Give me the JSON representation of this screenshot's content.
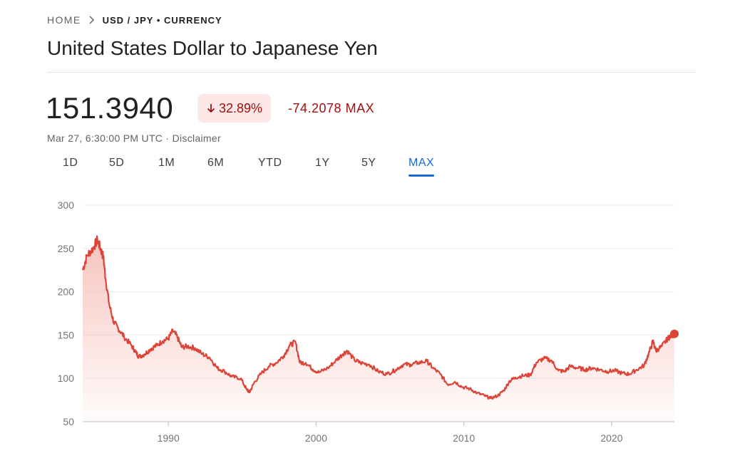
{
  "breadcrumb": {
    "home": "HOME",
    "pair": "USD / JPY • CURRENCY"
  },
  "title": "United States Dollar to Japanese Yen",
  "quote": {
    "price": "151.3940",
    "percent_change": "32.89%",
    "direction": "down",
    "abs_change": "-74.2078",
    "range_label": "MAX",
    "timestamp": "Mar 27, 6:30:00 PM UTC",
    "separator": "·",
    "disclaimer": "Disclaimer"
  },
  "ranges": [
    "1D",
    "5D",
    "1M",
    "6M",
    "YTD",
    "1Y",
    "5Y",
    "MAX"
  ],
  "active_range": "MAX",
  "colors": {
    "line": "#db4437",
    "fill_top": "#f6b9b2",
    "negative_text": "#a50e0e",
    "negative_bg": "#fce8e6",
    "accent": "#1967d2"
  },
  "chart_data": {
    "type": "area",
    "title": "",
    "xlabel": "",
    "ylabel": "",
    "xlim": [
      1984.2,
      2024.25
    ],
    "ylim": [
      50,
      300
    ],
    "yticks": [
      50,
      100,
      150,
      200,
      250,
      300
    ],
    "xticks": [
      1990,
      2000,
      2010,
      2020
    ],
    "grid": true,
    "series": [
      {
        "x": [
          1984.2,
          1984.5,
          1984.9,
          1985.2,
          1985.4,
          1985.6,
          1985.75,
          1986.0,
          1986.3,
          1986.6,
          1987.0,
          1987.5,
          1987.8,
          1988.0,
          1988.4,
          1988.8,
          1989.2,
          1989.6,
          1990.0,
          1990.3,
          1990.6,
          1990.9,
          1991.3,
          1991.8,
          1992.3,
          1992.8,
          1993.3,
          1993.8,
          1994.3,
          1994.9,
          1995.3,
          1995.5,
          1995.8,
          1996.3,
          1996.8,
          1997.3,
          1997.8,
          1998.2,
          1998.6,
          1998.9,
          1999.3,
          1999.8,
          2000.2,
          2000.8,
          2001.3,
          2001.8,
          2002.1,
          2002.6,
          2003.0,
          2003.6,
          2004.2,
          2004.8,
          2005.4,
          2005.9,
          2006.4,
          2006.9,
          2007.5,
          2007.9,
          2008.4,
          2008.9,
          2009.4,
          2009.9,
          2010.4,
          2010.9,
          2011.4,
          2011.8,
          2012.3,
          2012.7,
          2013.1,
          2013.5,
          2014.0,
          2014.5,
          2014.9,
          2015.4,
          2015.9,
          2016.4,
          2016.8,
          2017.2,
          2017.7,
          2018.2,
          2018.7,
          2019.2,
          2019.7,
          2020.2,
          2020.7,
          2021.2,
          2021.7,
          2022.2,
          2022.5,
          2022.8,
          2023.0,
          2023.4,
          2023.8,
          2024.0,
          2024.25
        ],
        "values": [
          225,
          242,
          250,
          260,
          250,
          240,
          215,
          185,
          165,
          158,
          148,
          138,
          130,
          125,
          128,
          134,
          138,
          143,
          146,
          155,
          148,
          136,
          137,
          135,
          128,
          124,
          112,
          108,
          102,
          100,
          87,
          84,
          95,
          106,
          114,
          118,
          126,
          138,
          142,
          118,
          118,
          110,
          107,
          112,
          120,
          128,
          132,
          121,
          118,
          116,
          108,
          105,
          110,
          116,
          116,
          118,
          120,
          112,
          105,
          93,
          96,
          90,
          88,
          83,
          80,
          77,
          80,
          86,
          97,
          101,
          103,
          104,
          118,
          123,
          121,
          109,
          108,
          114,
          112,
          110,
          112,
          110,
          108,
          109,
          106,
          105,
          110,
          115,
          128,
          143,
          132,
          137,
          146,
          149,
          151.394
        ]
      }
    ]
  }
}
